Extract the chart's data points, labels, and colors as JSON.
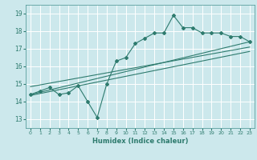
{
  "title": "",
  "xlabel": "Humidex (Indice chaleur)",
  "ylabel": "",
  "bg_color": "#cce8ec",
  "grid_color": "#ffffff",
  "line_color": "#2e7b6e",
  "xlim": [
    -0.5,
    23.5
  ],
  "ylim": [
    12.5,
    19.5
  ],
  "xticks": [
    0,
    1,
    2,
    3,
    4,
    5,
    6,
    7,
    8,
    9,
    10,
    11,
    12,
    13,
    14,
    15,
    16,
    17,
    18,
    19,
    20,
    21,
    22,
    23
  ],
  "yticks": [
    13,
    14,
    15,
    16,
    17,
    18,
    19
  ],
  "scatter_x": [
    0,
    1,
    2,
    3,
    4,
    5,
    6,
    7,
    8,
    9,
    10,
    11,
    12,
    13,
    14,
    15,
    16,
    17,
    18,
    19,
    20,
    21,
    22,
    23
  ],
  "scatter_y": [
    14.4,
    14.6,
    14.8,
    14.4,
    14.5,
    14.9,
    14.0,
    13.1,
    15.0,
    16.3,
    16.5,
    17.3,
    17.6,
    17.9,
    17.9,
    18.9,
    18.2,
    18.2,
    17.9,
    17.9,
    17.9,
    17.7,
    17.7,
    17.4
  ],
  "trend1_x": [
    0,
    23
  ],
  "trend1_y": [
    14.4,
    17.4
  ],
  "trend2_x": [
    0,
    23
  ],
  "trend2_y": [
    14.35,
    16.85
  ],
  "trend3_x": [
    0,
    23
  ],
  "trend3_y": [
    14.85,
    17.1
  ]
}
